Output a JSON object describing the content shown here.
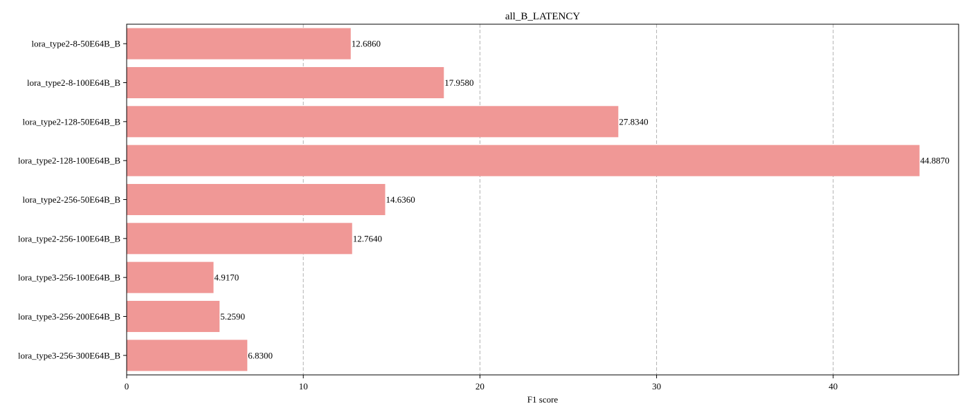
{
  "chart_data": {
    "type": "bar",
    "orientation": "horizontal",
    "title": "all_B_LATENCY",
    "xlabel": "F1 score",
    "ylabel": "",
    "xlim": [
      0,
      47.1
    ],
    "xticks": [
      0,
      10,
      20,
      30,
      40
    ],
    "grid": "x-dashed",
    "bar_color": "#f09896",
    "categories": [
      "lora_type2-8-50E64B_B",
      "lora_type2-8-100E64B_B",
      "lora_type2-128-50E64B_B",
      "lora_type2-128-100E64B_B",
      "lora_type2-256-50E64B_B",
      "lora_type2-256-100E64B_B",
      "lora_type3-256-100E64B_B",
      "lora_type3-256-200E64B_B",
      "lora_type3-256-300E64B_B"
    ],
    "values": [
      12.686,
      17.958,
      27.834,
      44.887,
      14.636,
      12.764,
      4.917,
      5.259,
      6.83
    ],
    "value_labels": [
      "12.6860",
      "17.9580",
      "27.8340",
      "44.8870",
      "14.6360",
      "12.7640",
      "4.9170",
      "5.2590",
      "6.8300"
    ]
  }
}
